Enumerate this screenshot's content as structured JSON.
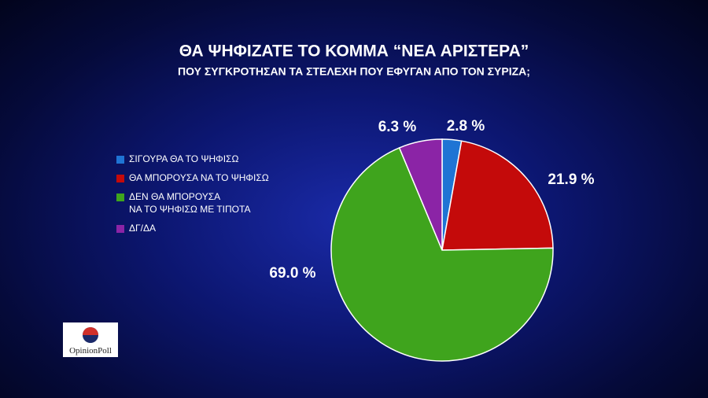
{
  "chart_data": {
    "type": "pie",
    "title": "ΘΑ ΨΗΦΙΖΑΤΕ ΤΟ ΚΟΜΜΑ “ΝΕΑ ΑΡΙΣΤΕΡΑ”",
    "subtitle": "ΠΟΥ ΣΥΓΚΡΟΤΗΣΑΝ ΤΑ ΣΤΕΛΕΧΗ ΠΟΥ ΕΦΥΓΑΝ ΑΠΟ ΤΟΝ ΣΥΡΙΖΑ;",
    "categories": [
      "ΣΙΓΟΥΡΑ ΘΑ ΤΟ ΨΗΦΙΣΩ",
      "ΘΑ ΜΠΟΡΟΥΣΑ ΝΑ ΤΟ ΨΗΦΙΣΩ",
      "ΔΕΝ ΘΑ ΜΠΟΡΟΥΣΑ\nΝΑ ΤΟ ΨΗΦΙΣΩ ΜΕ ΤΙΠΟΤΑ",
      "ΔΓ/ΔΑ"
    ],
    "values": [
      2.8,
      21.9,
      69.0,
      6.3
    ],
    "value_labels": [
      "2.8 %",
      "21.9 %",
      "69.0 %",
      "6.3 %"
    ],
    "colors": [
      "#1f74d4",
      "#c40a0a",
      "#3fa41d",
      "#8b24a6"
    ]
  },
  "logo": "OpinionPoll"
}
